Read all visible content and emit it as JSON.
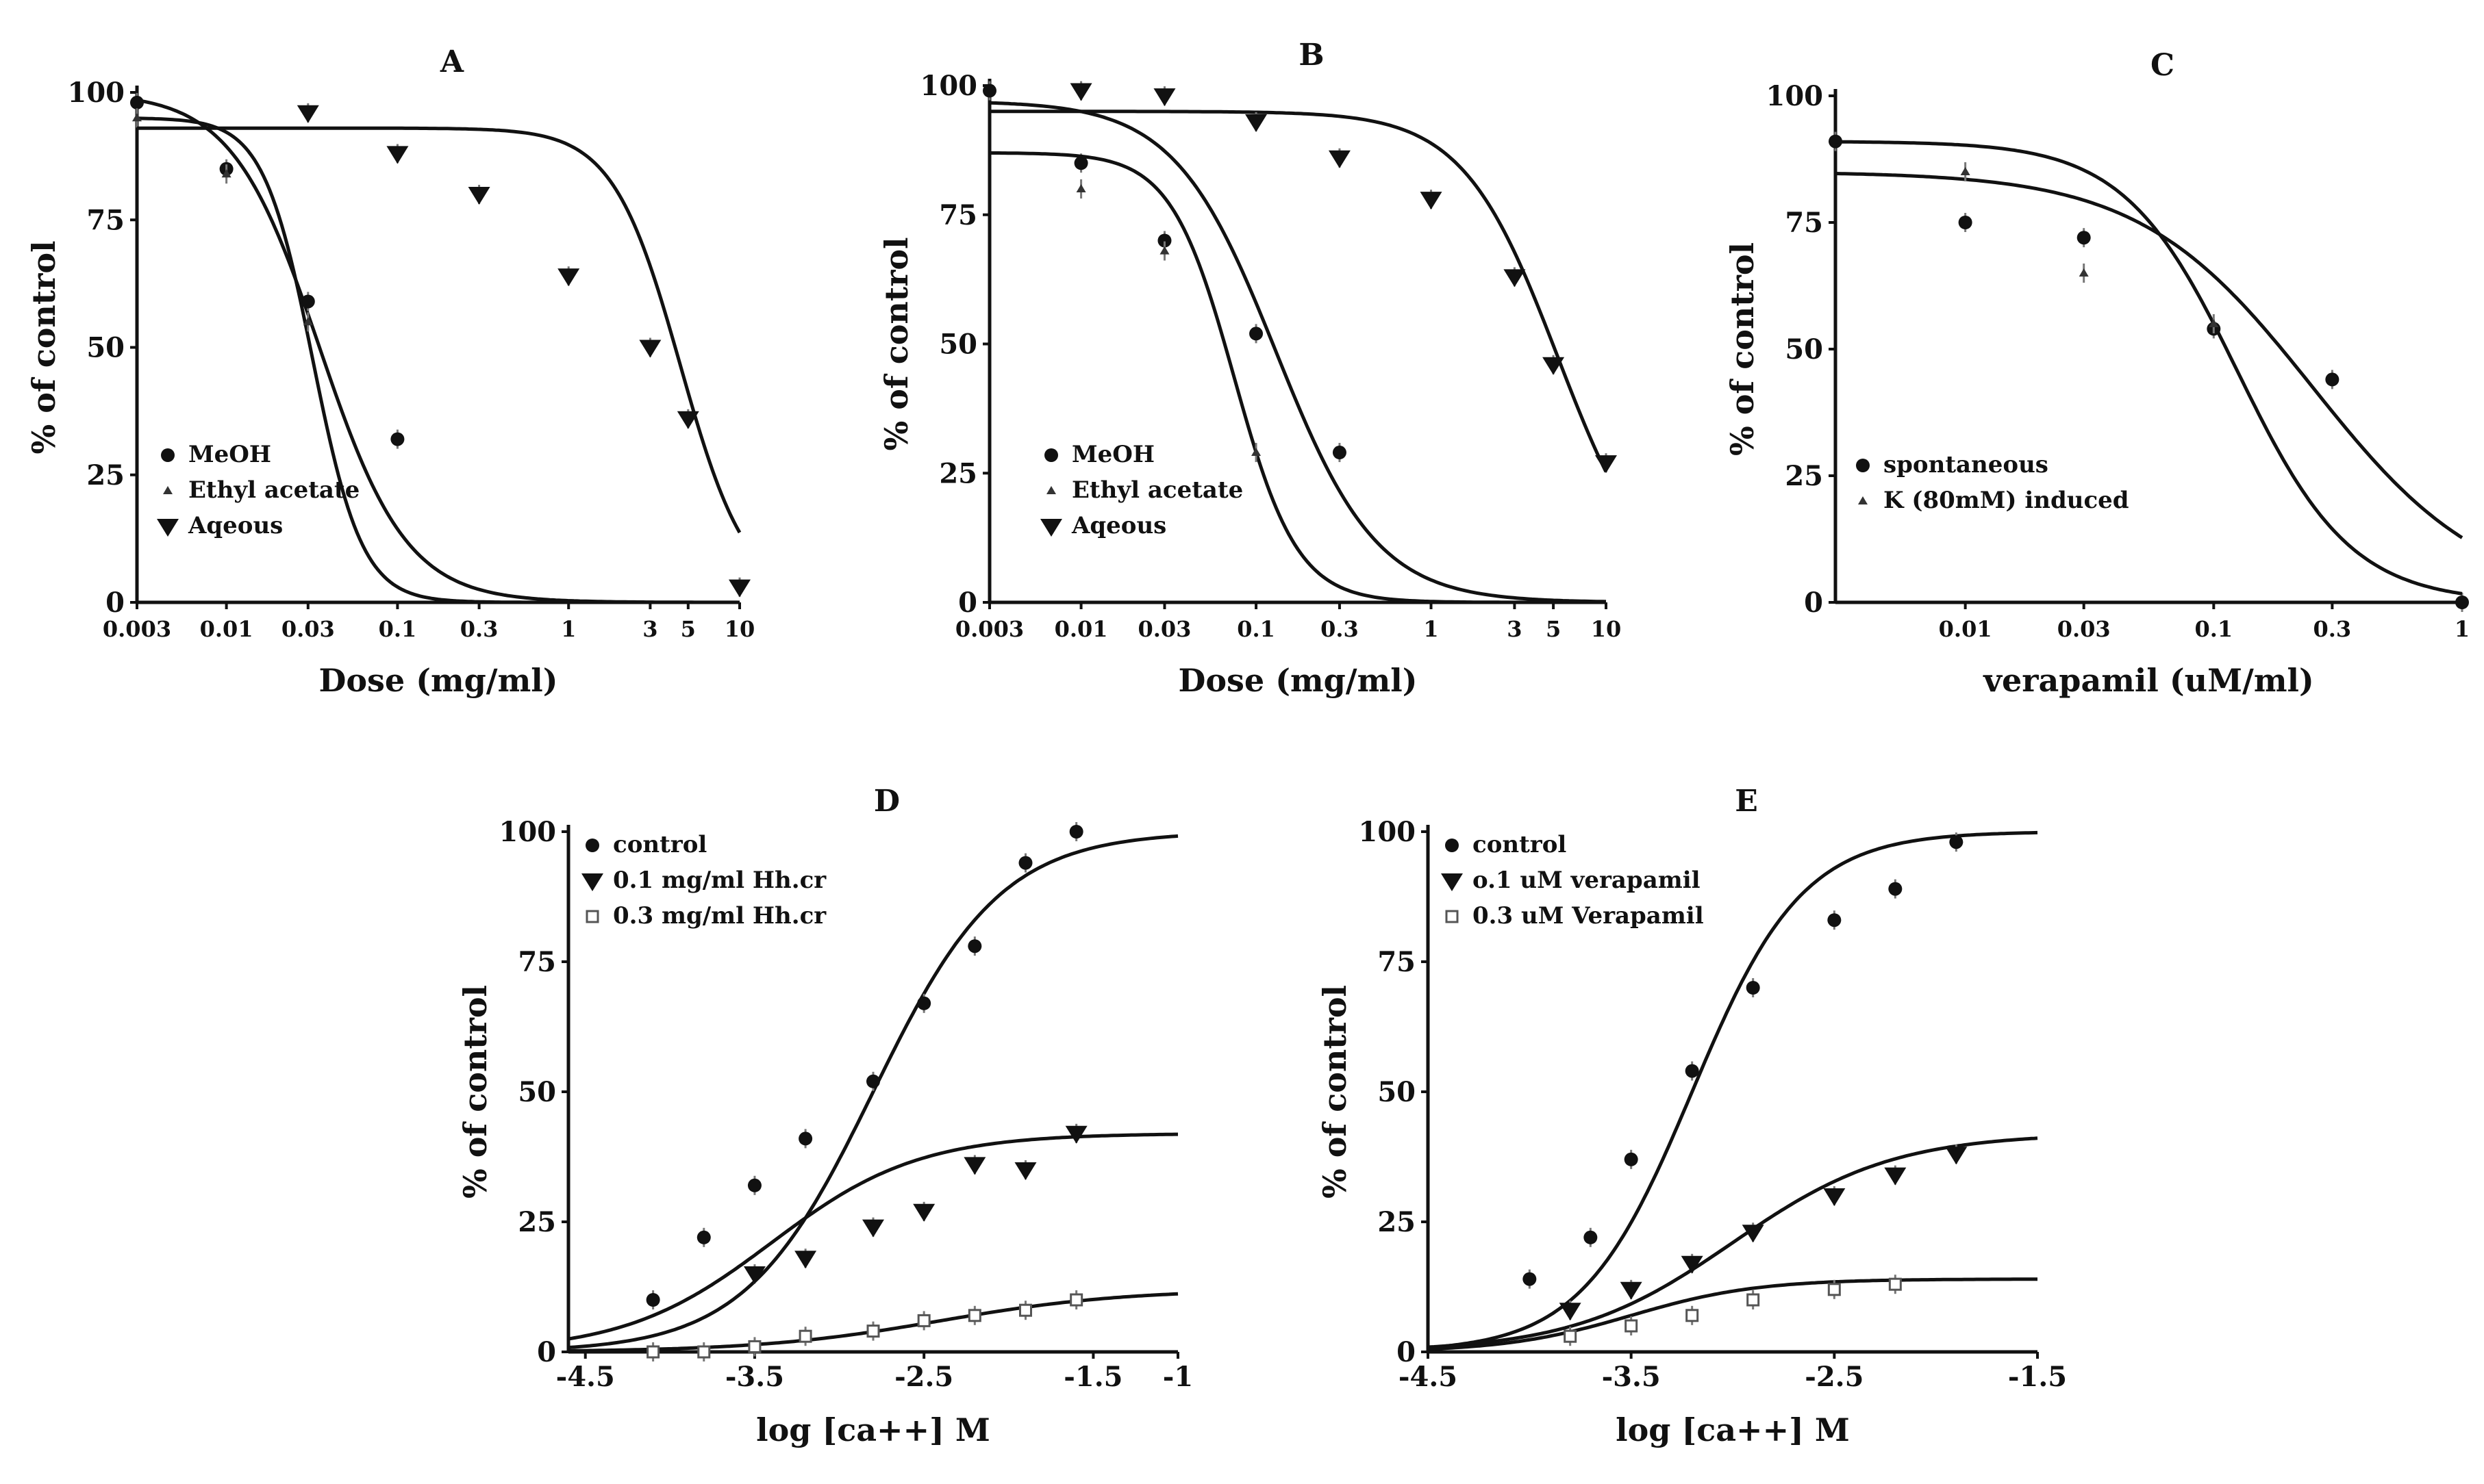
{
  "chart_data": [
    {
      "panel": "A",
      "title": "A",
      "type": "scatter",
      "xscale": "log",
      "xlabel": "Dose (mg/ml)",
      "ylabel": "% of control",
      "xlim": [
        0.003,
        10
      ],
      "ylim": [
        0,
        100
      ],
      "xticks": [
        0.003,
        0.01,
        0.03,
        0.1,
        0.3,
        1,
        3,
        5,
        10
      ],
      "xtick_labels": [
        "0.003",
        "0.01",
        "0.03",
        "0.1",
        "0.3",
        "1",
        "3",
        "5",
        "10"
      ],
      "yticks": [
        0,
        25,
        50,
        75,
        100
      ],
      "ytick_labels": [
        "0",
        "25",
        "50",
        "75",
        "100"
      ],
      "legend_position": "bottom-left",
      "series": [
        {
          "name": "MeOH",
          "marker": "circle",
          "x": [
            0.003,
            0.01,
            0.03,
            0.1
          ],
          "y": [
            98,
            85,
            59,
            32
          ],
          "fit": {
            "top": 100,
            "bottom": 0,
            "ec50": 0.035,
            "hill": 1.7
          }
        },
        {
          "name": "Ethyl acetate",
          "marker": "triangle-up",
          "x": [
            0.003,
            0.01,
            0.03
          ],
          "y": [
            95,
            84,
            55
          ],
          "fit": {
            "top": 95,
            "bottom": 0,
            "ec50": 0.032,
            "hill": 3.0
          }
        },
        {
          "name": "Aqeous",
          "marker": "triangle-down",
          "x": [
            0.03,
            0.1,
            0.3,
            1,
            3,
            5,
            10
          ],
          "y": [
            96,
            88,
            80,
            64,
            50,
            36,
            3
          ],
          "fit": {
            "top": 93,
            "bottom": 0,
            "ec50": 4.5,
            "hill": 2.2
          }
        }
      ]
    },
    {
      "panel": "B",
      "title": "B",
      "type": "scatter",
      "xscale": "log",
      "xlabel": "Dose (mg/ml)",
      "ylabel": "% of control",
      "xlim": [
        0.003,
        10
      ],
      "ylim": [
        0,
        100
      ],
      "xticks": [
        0.003,
        0.01,
        0.03,
        0.1,
        0.3,
        1,
        3,
        5,
        10
      ],
      "xtick_labels": [
        "0.003",
        "0.01",
        "0.03",
        "0.1",
        "0.3",
        "1",
        "3",
        "5",
        "10"
      ],
      "yticks": [
        0,
        25,
        50,
        75,
        100
      ],
      "ytick_labels": [
        "0",
        "25",
        "50",
        "75",
        "100"
      ],
      "legend_position": "bottom-left",
      "series": [
        {
          "name": "MeOH",
          "marker": "circle",
          "x": [
            0.003,
            0.01,
            0.03,
            0.1,
            0.3
          ],
          "y": [
            99,
            85,
            70,
            52,
            29
          ],
          "fit": {
            "top": 97,
            "bottom": 0,
            "ec50": 0.13,
            "hill": 1.5
          }
        },
        {
          "name": "Ethyl acetate",
          "marker": "triangle-up",
          "x": [
            0.01,
            0.03,
            0.1
          ],
          "y": [
            80,
            68,
            29
          ],
          "fit": {
            "top": 87,
            "bottom": 0,
            "ec50": 0.075,
            "hill": 2.4
          }
        },
        {
          "name": "Aqeous",
          "marker": "triangle-down",
          "x": [
            0.01,
            0.03,
            0.1,
            0.3,
            1,
            3,
            5,
            10
          ],
          "y": [
            99,
            98,
            93,
            86,
            78,
            63,
            46,
            27
          ],
          "fit": {
            "top": 95,
            "bottom": 0,
            "ec50": 5.3,
            "hill": 1.6
          }
        }
      ]
    },
    {
      "panel": "C",
      "title": "C",
      "type": "scatter",
      "xscale": "log",
      "xlabel": "verapamil (uM/ml)",
      "ylabel": "% of control",
      "xlim": [
        0.003,
        1
      ],
      "ylim": [
        0,
        100
      ],
      "xticks": [
        0.01,
        0.03,
        0.1,
        0.3,
        1
      ],
      "xtick_labels": [
        "0.01",
        "0.03",
        "0.1",
        "0.3",
        "1"
      ],
      "yticks": [
        0,
        25,
        50,
        75,
        100
      ],
      "ytick_labels": [
        "0",
        "25",
        "50",
        "75",
        "100"
      ],
      "legend_position": "bottom-left",
      "series": [
        {
          "name": "spontaneous",
          "marker": "circle",
          "x": [
            0.003,
            0.01,
            0.03,
            0.1,
            0.3,
            1
          ],
          "y": [
            91,
            75,
            72,
            54,
            44,
            0
          ],
          "fit": {
            "top": 85,
            "bottom": 0,
            "ec50": 0.25,
            "hill": 1.25
          }
        },
        {
          "name": "K (80mM) induced",
          "marker": "triangle-up",
          "x": [
            0.01,
            0.03,
            0.1
          ],
          "y": [
            85,
            65,
            55
          ],
          "fit": {
            "top": 91,
            "bottom": 0,
            "ec50": 0.125,
            "hill": 1.9
          }
        }
      ]
    },
    {
      "panel": "D",
      "title": "D",
      "type": "scatter",
      "xlabel": "log [ca++] M",
      "ylabel": "% of control",
      "xlim": [
        -4.6,
        -1.0
      ],
      "ylim": [
        0,
        100
      ],
      "xticks": [
        -4.5,
        -3.5,
        -2.5,
        -1.5,
        -1
      ],
      "xtick_labels": [
        "-4.5",
        "-3.5",
        "-2.5",
        "-1.5",
        "-1"
      ],
      "yticks": [
        0,
        25,
        50,
        75,
        100
      ],
      "ytick_labels": [
        "0",
        "25",
        "50",
        "75",
        "100"
      ],
      "legend_position": "top-left",
      "series": [
        {
          "name": "control",
          "marker": "circle",
          "x": [
            -4.1,
            -3.8,
            -3.5,
            -3.2,
            -2.8,
            -2.5,
            -2.2,
            -1.9,
            -1.6
          ],
          "y": [
            10,
            22,
            32,
            41,
            52,
            67,
            78,
            94,
            100
          ],
          "fit": {
            "top": 100,
            "bottom": 0,
            "ec50": -2.8,
            "hill": 1.15
          }
        },
        {
          "name": "0.1 mg/ml Hh.cr",
          "marker": "triangle-down",
          "x": [
            -3.5,
            -3.2,
            -2.8,
            -2.5,
            -2.2,
            -1.9,
            -1.6
          ],
          "y": [
            15,
            18,
            24,
            27,
            36,
            35,
            42
          ],
          "fit": {
            "top": 42,
            "bottom": 0,
            "ec50": -3.4,
            "hill": 1.0
          }
        },
        {
          "name": "0.3 mg/ml Hh.cr",
          "marker": "square-open",
          "x": [
            -4.1,
            -3.8,
            -3.5,
            -3.2,
            -2.8,
            -2.5,
            -2.2,
            -1.9,
            -1.6
          ],
          "y": [
            0,
            0,
            1,
            3,
            4,
            6,
            7,
            8,
            10
          ],
          "fit": {
            "top": 12,
            "bottom": 0,
            "ec50": -2.4,
            "hill": 0.8
          }
        }
      ]
    },
    {
      "panel": "E",
      "title": "E",
      "type": "scatter",
      "xlabel": "log [ca++] M",
      "ylabel": "% of control",
      "xlim": [
        -4.5,
        -1.5
      ],
      "ylim": [
        0,
        100
      ],
      "xticks": [
        -4.5,
        -3.5,
        -2.5,
        -1.5
      ],
      "xtick_labels": [
        "-4.5",
        "-3.5",
        "-2.5",
        "-1.5"
      ],
      "yticks": [
        0,
        25,
        50,
        75,
        100
      ],
      "ytick_labels": [
        "0",
        "25",
        "50",
        "75",
        "100"
      ],
      "legend_position": "top-left",
      "series": [
        {
          "name": "control",
          "marker": "circle",
          "x": [
            -4.0,
            -3.7,
            -3.5,
            -3.2,
            -2.9,
            -2.5,
            -2.2,
            -1.9
          ],
          "y": [
            14,
            22,
            37,
            54,
            70,
            83,
            89,
            98
          ],
          "fit": {
            "top": 100,
            "bottom": 0,
            "ec50": -3.2,
            "hill": 1.6
          }
        },
        {
          "name": "o.1 uM verapamil",
          "marker": "triangle-down",
          "x": [
            -3.8,
            -3.5,
            -3.2,
            -2.9,
            -2.5,
            -2.2,
            -1.9
          ],
          "y": [
            8,
            12,
            17,
            23,
            30,
            34,
            38
          ],
          "fit": {
            "top": 42,
            "bottom": 0,
            "ec50": -3.0,
            "hill": 1.1
          }
        },
        {
          "name": "0.3 uM Verapamil",
          "marker": "square-open",
          "x": [
            -3.8,
            -3.5,
            -3.2,
            -2.9,
            -2.5,
            -2.2
          ],
          "y": [
            3,
            5,
            7,
            10,
            12,
            13
          ],
          "fit": {
            "top": 14,
            "bottom": 0,
            "ec50": -3.5,
            "hill": 1.4
          }
        }
      ]
    }
  ]
}
